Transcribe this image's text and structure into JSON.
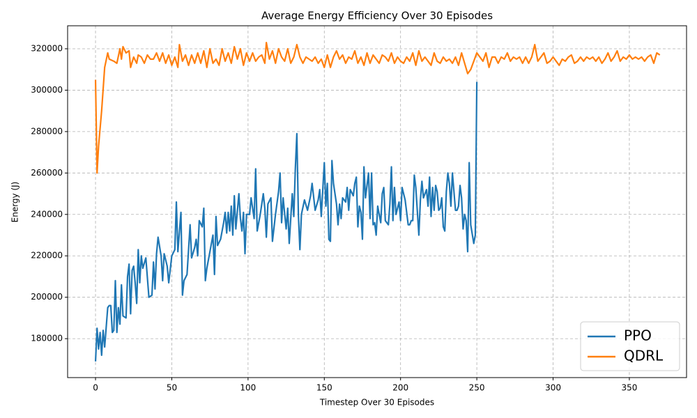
{
  "chart_data": {
    "type": "line",
    "title": "Average Energy Efficiency Over 30 Episodes",
    "x_label": "Timestep Over 30 Episodes",
    "y_label": "Energy (J)",
    "xlim": [
      -18.3,
      387.5
    ],
    "xticks": [
      0,
      50,
      100,
      150,
      200,
      250,
      300,
      350
    ],
    "ylim": [
      161200,
      331100
    ],
    "yticks": [
      180000,
      200000,
      220000,
      240000,
      260000,
      280000,
      300000,
      320000
    ],
    "grid": true,
    "legend": "lower right",
    "series": [
      {
        "name": "PPO",
        "color": "#1f77b4",
        "x": [
          0,
          1,
          2,
          3,
          4,
          5,
          6,
          8,
          9,
          10,
          11,
          12,
          13,
          14,
          15,
          16,
          17,
          18,
          20,
          21,
          22,
          23,
          24,
          25,
          26,
          27,
          28,
          29,
          30,
          31,
          33,
          35,
          37,
          38,
          39,
          40,
          41,
          43,
          44,
          45,
          47,
          48,
          50,
          52,
          53,
          54,
          56,
          57,
          58,
          60,
          62,
          63,
          65,
          66,
          67,
          68,
          70,
          71,
          72,
          73,
          75,
          77,
          78,
          79,
          80,
          82,
          84,
          85,
          86,
          87,
          88,
          89,
          90,
          91,
          92,
          94,
          95,
          96,
          97,
          98,
          99,
          101,
          102,
          104,
          105,
          106,
          108,
          110,
          111,
          112,
          113,
          115,
          116,
          118,
          120,
          121,
          122,
          123,
          125,
          126,
          127,
          129,
          130,
          131,
          132,
          133,
          134,
          135,
          137,
          139,
          141,
          142,
          144,
          146,
          147,
          148,
          150,
          151,
          152,
          153,
          154,
          155,
          156,
          158,
          159,
          160,
          161,
          162,
          164,
          165,
          166,
          167,
          169,
          170,
          171,
          172,
          173,
          174,
          175,
          176,
          177,
          179,
          180,
          181,
          182,
          183,
          184,
          185,
          187,
          188,
          189,
          190,
          192,
          193,
          194,
          195,
          196,
          197,
          199,
          200,
          201,
          203,
          205,
          206,
          207,
          208,
          209,
          210,
          212,
          213,
          214,
          215,
          217,
          218,
          219,
          220,
          221,
          222,
          223,
          224,
          225,
          226,
          227,
          228,
          229,
          230,
          231,
          232,
          233,
          234,
          236,
          237,
          238,
          239,
          240,
          241,
          242,
          243,
          244,
          245,
          246,
          248,
          249,
          250
        ],
        "values": [
          169000,
          185000,
          175000,
          183000,
          172000,
          184000,
          176000,
          195000,
          196000,
          196000,
          183000,
          184000,
          208000,
          183000,
          195000,
          187000,
          206000,
          191000,
          190000,
          210000,
          216000,
          192000,
          213000,
          215000,
          207000,
          197000,
          223000,
          207000,
          220000,
          214000,
          219000,
          200000,
          201000,
          217000,
          204000,
          221000,
          229000,
          220000,
          208000,
          221000,
          215000,
          207000,
          220000,
          223000,
          246000,
          222000,
          241000,
          201000,
          208000,
          211000,
          235000,
          219000,
          224000,
          228000,
          220000,
          237000,
          234000,
          243000,
          208000,
          214000,
          222000,
          230000,
          211000,
          239000,
          225000,
          228000,
          236000,
          241000,
          231000,
          241000,
          232000,
          244000,
          230000,
          249000,
          233000,
          250000,
          238000,
          232000,
          241000,
          221000,
          240000,
          240000,
          248000,
          238000,
          262000,
          232000,
          240000,
          250000,
          243000,
          229000,
          245000,
          248000,
          227000,
          240000,
          251000,
          260000,
          236000,
          248000,
          233000,
          243000,
          226000,
          250000,
          239000,
          262000,
          279000,
          240000,
          223000,
          240000,
          247000,
          242000,
          249000,
          255000,
          242000,
          247000,
          252000,
          239000,
          265000,
          244000,
          255000,
          228000,
          227000,
          266000,
          255000,
          245000,
          235000,
          245000,
          238000,
          248000,
          246000,
          253000,
          242000,
          252000,
          249000,
          255000,
          258000,
          234000,
          244000,
          241000,
          228000,
          263000,
          248000,
          260000,
          238000,
          260000,
          235000,
          236000,
          230000,
          244000,
          236000,
          250000,
          253000,
          237000,
          235000,
          245000,
          263000,
          237000,
          253000,
          240000,
          246000,
          237000,
          253000,
          247000,
          235000,
          235000,
          237000,
          237000,
          259000,
          253000,
          230000,
          247000,
          256000,
          248000,
          252000,
          244000,
          258000,
          239000,
          253000,
          242000,
          254000,
          251000,
          242000,
          243000,
          248000,
          234000,
          232000,
          251000,
          260000,
          255000,
          244000,
          260000,
          242000,
          242000,
          244000,
          254000,
          248000,
          233000,
          240000,
          237000,
          222000,
          265000,
          235000,
          226000,
          230000,
          304000
        ]
      },
      {
        "name": "QDRL",
        "color": "#ff7f0e",
        "x": [
          0,
          1,
          2,
          4,
          6,
          8,
          9,
          12,
          14,
          16,
          17,
          18,
          20,
          22,
          23,
          25,
          27,
          28,
          30,
          32,
          34,
          36,
          38,
          40,
          42,
          44,
          46,
          48,
          50,
          52,
          54,
          55,
          57,
          59,
          61,
          63,
          65,
          67,
          69,
          71,
          73,
          75,
          77,
          79,
          81,
          83,
          85,
          87,
          89,
          91,
          93,
          95,
          97,
          99,
          101,
          103,
          105,
          107,
          109,
          111,
          112,
          114,
          116,
          118,
          120,
          122,
          124,
          126,
          128,
          130,
          132,
          134,
          136,
          138,
          140,
          142,
          144,
          146,
          148,
          150,
          152,
          154,
          156,
          158,
          160,
          162,
          164,
          166,
          168,
          170,
          172,
          174,
          176,
          178,
          180,
          182,
          184,
          186,
          188,
          190,
          192,
          194,
          196,
          198,
          200,
          202,
          204,
          206,
          208,
          210,
          212,
          214,
          216,
          218,
          220,
          222,
          224,
          226,
          228,
          230,
          232,
          234,
          236,
          238,
          240,
          242,
          244,
          246,
          248,
          250,
          252,
          254,
          256,
          258,
          260,
          262,
          264,
          266,
          268,
          270,
          272,
          274,
          276,
          278,
          280,
          282,
          284,
          286,
          288,
          290,
          292,
          294,
          296,
          298,
          300,
          302,
          304,
          306,
          308,
          310,
          312,
          314,
          316,
          318,
          320,
          322,
          324,
          326,
          328,
          330,
          332,
          334,
          336,
          338,
          340,
          342,
          344,
          346,
          348,
          350,
          352,
          354,
          356,
          358,
          360,
          362,
          364,
          366,
          368,
          370
        ],
        "values": [
          305000,
          260000,
          273000,
          290000,
          311000,
          318000,
          315000,
          314000,
          313000,
          320000,
          315000,
          321000,
          318000,
          319000,
          311000,
          316000,
          313000,
          317000,
          316000,
          313000,
          317000,
          315000,
          315000,
          318000,
          314000,
          318000,
          313000,
          317000,
          312000,
          316000,
          311000,
          322000,
          314000,
          317000,
          312000,
          317000,
          313000,
          318000,
          313000,
          319000,
          311000,
          320000,
          313000,
          315000,
          312000,
          320000,
          314000,
          318000,
          313000,
          321000,
          315000,
          320000,
          312000,
          318000,
          314000,
          318000,
          314000,
          316000,
          317000,
          313000,
          323000,
          315000,
          319000,
          313000,
          320000,
          316000,
          314000,
          320000,
          313000,
          316000,
          322000,
          316000,
          313000,
          316000,
          315000,
          314000,
          316000,
          313000,
          315000,
          311000,
          317000,
          311000,
          316000,
          319000,
          315000,
          317000,
          313000,
          316000,
          315000,
          319000,
          313000,
          316000,
          312000,
          318000,
          313000,
          317000,
          315000,
          313000,
          317000,
          316000,
          314000,
          318000,
          313000,
          316000,
          314000,
          313000,
          316000,
          314000,
          318000,
          312000,
          319000,
          314000,
          316000,
          314000,
          312000,
          318000,
          314000,
          313000,
          316000,
          314000,
          315000,
          313000,
          316000,
          312000,
          318000,
          313000,
          308000,
          310000,
          314000,
          318000,
          316000,
          314000,
          318000,
          311000,
          316000,
          316000,
          313000,
          316000,
          315000,
          318000,
          314000,
          316000,
          315000,
          316000,
          313000,
          316000,
          313000,
          316000,
          322000,
          314000,
          316000,
          318000,
          313000,
          314000,
          316000,
          314000,
          312000,
          315000,
          314000,
          316000,
          317000,
          313000,
          314000,
          316000,
          314000,
          316000,
          315000,
          316000,
          314000,
          316000,
          313000,
          315000,
          318000,
          314000,
          316000,
          319000,
          314000,
          316000,
          315000,
          317000,
          315000,
          316000,
          315000,
          316000,
          314000,
          316000,
          317000,
          313000,
          318000,
          317000
        ]
      }
    ]
  }
}
